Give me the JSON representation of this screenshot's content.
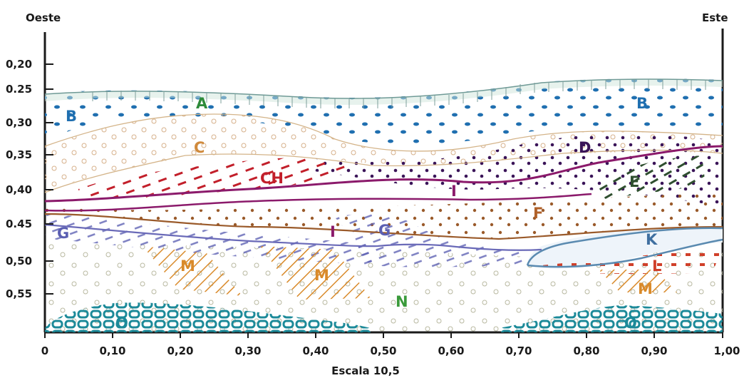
{
  "orientation": {
    "west": "Oeste",
    "east": "Este"
  },
  "depth_axis": {
    "ticks": [
      "0,20",
      "0.25",
      "0,30",
      "0,35",
      "0,40",
      "0.45",
      "0,50",
      "0,55"
    ]
  },
  "horizontal_axis": {
    "ticks": [
      "0",
      "0,10",
      "0,20",
      "0,30",
      "0,40",
      "0,50",
      "0,60",
      "0,70",
      "0,80",
      "0,90",
      "1,00"
    ],
    "caption": "Escala 10,5"
  },
  "layers": {
    "A": "A",
    "B_left": "B",
    "B_right": "B",
    "C": "C",
    "CH": "CH",
    "D": "D",
    "E": "E",
    "F": "F",
    "G_left": "G",
    "G_mid": "G",
    "I_upper": "I",
    "I_lower": "I",
    "K": "K",
    "L": "L",
    "M_left": "M",
    "M_mid": "M",
    "M_right": "M",
    "N": "N",
    "O_left": "O",
    "O_right": "O"
  },
  "colors": {
    "A": "#2e8b3a",
    "B": "#1f6fb0",
    "C": "#d08a3c",
    "CH": "#c21f2a",
    "D": "#3a1458",
    "E": "#2f4f2f",
    "F": "#b0612a",
    "G": "#5b5fb2",
    "I": "#8b1a6b",
    "K": "#3f6fa0",
    "L": "#d0402a",
    "M": "#d98a2a",
    "N": "#3a9a3a",
    "O": "#1c8a99",
    "ink": "#1a1a1a"
  }
}
